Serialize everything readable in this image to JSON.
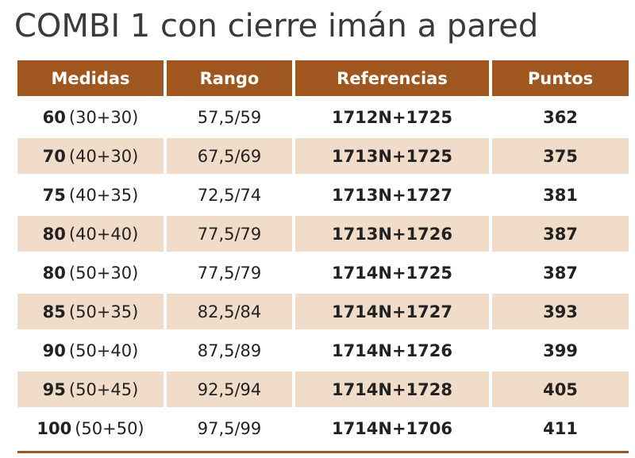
{
  "title": "COMBI 1 con cierre imán a pared",
  "colors": {
    "header_bg": "#a0561f",
    "stripe_bg": "#f1dcc9",
    "header_text": "#ffffff"
  },
  "table": {
    "headers": [
      "Medidas",
      "Rango",
      "Referencias",
      "Puntos"
    ],
    "rows": [
      {
        "medida_main": "60",
        "medida_detail": "(30+30)",
        "rango": "57,5/59",
        "referencia": "1712N+1725",
        "puntos": "362"
      },
      {
        "medida_main": "70",
        "medida_detail": "(40+30)",
        "rango": "67,5/69",
        "referencia": "1713N+1725",
        "puntos": "375"
      },
      {
        "medida_main": "75",
        "medida_detail": "(40+35)",
        "rango": "72,5/74",
        "referencia": "1713N+1727",
        "puntos": "381"
      },
      {
        "medida_main": "80",
        "medida_detail": "(40+40)",
        "rango": "77,5/79",
        "referencia": "1713N+1726",
        "puntos": "387"
      },
      {
        "medida_main": "80",
        "medida_detail": "(50+30)",
        "rango": "77,5/79",
        "referencia": "1714N+1725",
        "puntos": "387"
      },
      {
        "medida_main": "85",
        "medida_detail": "(50+35)",
        "rango": "82,5/84",
        "referencia": "1714N+1727",
        "puntos": "393"
      },
      {
        "medida_main": "90",
        "medida_detail": "(50+40)",
        "rango": "87,5/89",
        "referencia": "1714N+1726",
        "puntos": "399"
      },
      {
        "medida_main": "95",
        "medida_detail": "(50+45)",
        "rango": "92,5/94",
        "referencia": "1714N+1728",
        "puntos": "405"
      },
      {
        "medida_main": "100",
        "medida_detail": "(50+50)",
        "rango": "97,5/99",
        "referencia": "1714N+1706",
        "puntos": "411"
      }
    ]
  }
}
